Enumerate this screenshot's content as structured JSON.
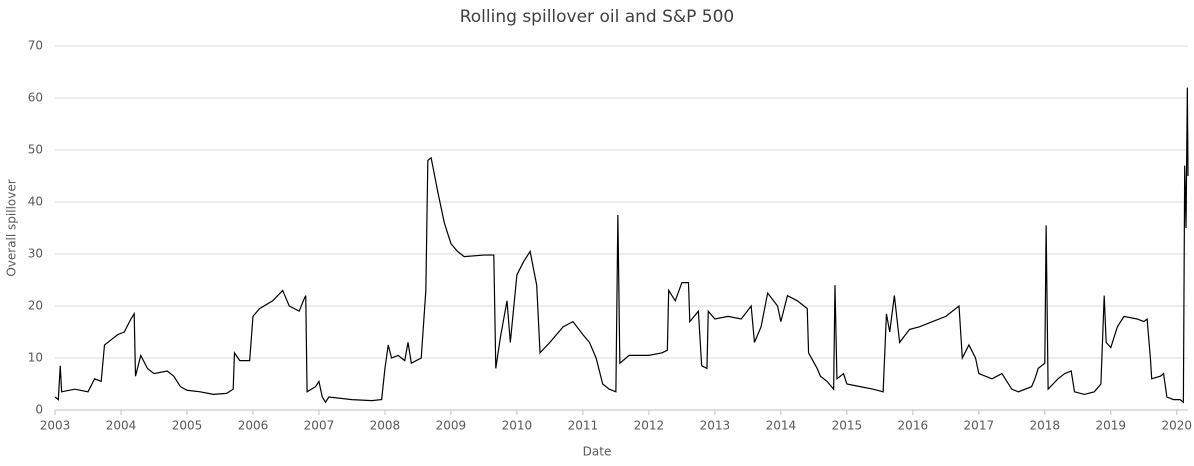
{
  "chart_data": {
    "type": "line",
    "title": "Rolling spillover oil and S&P 500",
    "xlabel": "Date",
    "ylabel": "Overall spillover",
    "color": "#000000",
    "grid": true,
    "x": [
      2003.0,
      2003.05,
      2003.08,
      2003.1,
      2003.3,
      2003.5,
      2003.6,
      2003.7,
      2003.75,
      2003.85,
      2003.95,
      2004.05,
      2004.15,
      2004.2,
      2004.22,
      2004.3,
      2004.4,
      2004.5,
      2004.7,
      2004.8,
      2004.9,
      2005.0,
      2005.2,
      2005.4,
      2005.6,
      2005.7,
      2005.72,
      2005.8,
      2005.95,
      2006.0,
      2006.1,
      2006.3,
      2006.45,
      2006.55,
      2006.7,
      2006.78,
      2006.8,
      2006.82,
      2006.95,
      2007.0,
      2007.05,
      2007.1,
      2007.15,
      2007.5,
      2007.8,
      2007.95,
      2008.0,
      2008.05,
      2008.1,
      2008.2,
      2008.3,
      2008.35,
      2008.4,
      2008.55,
      2008.62,
      2008.65,
      2008.7,
      2008.8,
      2008.9,
      2009.0,
      2009.1,
      2009.2,
      2009.5,
      2009.65,
      2009.68,
      2009.75,
      2009.85,
      2009.9,
      2010.0,
      2010.1,
      2010.2,
      2010.3,
      2010.35,
      2010.5,
      2010.7,
      2010.85,
      2011.0,
      2011.1,
      2011.2,
      2011.3,
      2011.4,
      2011.5,
      2011.53,
      2011.56,
      2011.7,
      2011.9,
      2012.0,
      2012.2,
      2012.28,
      2012.3,
      2012.4,
      2012.5,
      2012.6,
      2012.62,
      2012.75,
      2012.8,
      2012.88,
      2012.9,
      2013.0,
      2013.2,
      2013.4,
      2013.55,
      2013.6,
      2013.7,
      2013.8,
      2013.95,
      2014.0,
      2014.1,
      2014.25,
      2014.4,
      2014.42,
      2014.55,
      2014.6,
      2014.7,
      2014.8,
      2014.82,
      2014.85,
      2014.95,
      2015.0,
      2015.2,
      2015.4,
      2015.55,
      2015.6,
      2015.65,
      2015.72,
      2015.8,
      2015.95,
      2016.1,
      2016.3,
      2016.5,
      2016.7,
      2016.75,
      2016.85,
      2016.95,
      2017.0,
      2017.2,
      2017.35,
      2017.5,
      2017.6,
      2017.8,
      2017.85,
      2017.9,
      2018.0,
      2018.02,
      2018.05,
      2018.2,
      2018.3,
      2018.4,
      2018.45,
      2018.6,
      2018.75,
      2018.85,
      2018.9,
      2018.93,
      2019.0,
      2019.1,
      2019.2,
      2019.4,
      2019.5,
      2019.55,
      2019.6,
      2019.62,
      2019.75,
      2019.8,
      2019.85,
      2019.95,
      2020.05,
      2020.1,
      2020.12,
      2020.14,
      2020.16,
      2020.17
    ],
    "values": [
      2.5,
      2,
      8.5,
      3.5,
      4,
      3.5,
      6,
      5.5,
      12.5,
      13.5,
      14.5,
      15,
      17.5,
      18.5,
      6.5,
      10.5,
      8,
      7,
      7.5,
      6.5,
      4.5,
      3.8,
      3.5,
      3,
      3.2,
      4,
      11,
      9.5,
      9.5,
      18,
      19.5,
      21,
      23,
      20,
      19,
      21.5,
      22,
      3.5,
      4.5,
      5.5,
      2.5,
      1.5,
      2.5,
      2,
      1.8,
      2,
      8,
      12.5,
      10,
      10.5,
      9.5,
      13,
      9,
      10,
      23,
      48,
      48.5,
      42,
      36,
      32,
      30.5,
      29.5,
      29.8,
      29.8,
      8,
      14,
      21,
      13,
      26,
      28.5,
      30.5,
      24,
      11,
      13,
      16,
      17,
      14.5,
      13,
      10,
      5,
      4,
      3.5,
      37.5,
      9,
      10.5,
      10.5,
      10.5,
      11,
      11.5,
      23,
      21,
      24.5,
      24.5,
      17,
      19,
      8.5,
      8,
      19,
      17.5,
      18,
      17.5,
      20,
      13,
      16,
      22.5,
      20,
      17,
      22,
      21,
      19.5,
      11,
      8,
      6.5,
      5.5,
      4,
      24,
      6,
      7,
      5,
      4.5,
      4,
      3.5,
      18.5,
      15,
      22,
      13,
      15.5,
      16,
      17,
      18,
      20,
      10,
      12.5,
      10,
      7,
      6,
      7,
      4,
      3.5,
      4.5,
      6,
      8,
      9,
      35.5,
      4,
      6,
      7,
      7.5,
      3.5,
      3,
      3.5,
      5,
      22,
      13,
      12,
      16,
      18,
      17.5,
      17,
      17.5,
      10,
      6,
      6.5,
      7,
      2.5,
      2,
      2,
      1.5,
      47,
      35,
      62,
      45
    ],
    "xlim": [
      2003,
      2020.17
    ],
    "xticks": [
      2003,
      2004,
      2005,
      2006,
      2007,
      2008,
      2009,
      2010,
      2011,
      2012,
      2013,
      2014,
      2015,
      2016,
      2017,
      2018,
      2019,
      2020
    ],
    "ylim": [
      0,
      70
    ],
    "yticks": [
      0,
      10,
      20,
      30,
      40,
      50,
      60,
      70
    ]
  }
}
